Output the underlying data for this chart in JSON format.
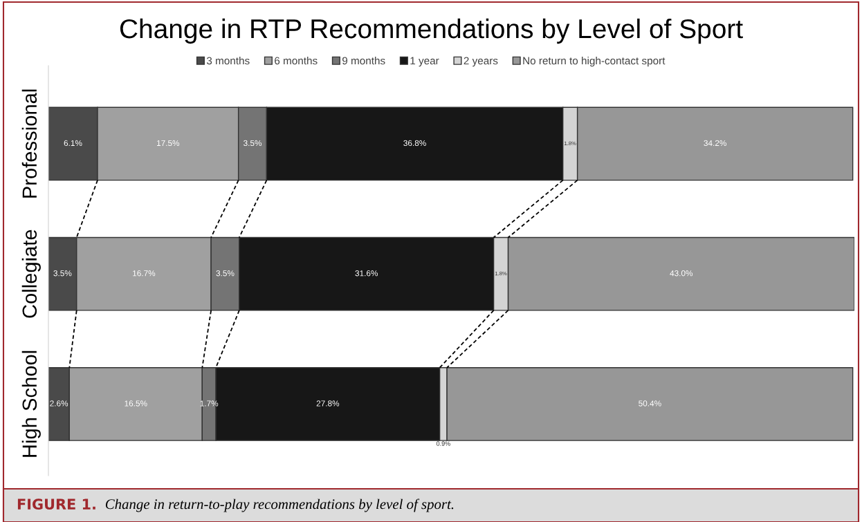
{
  "chart_data": {
    "type": "bar",
    "orientation": "horizontal",
    "stacked": true,
    "title": "Change in RTP Recommendations by Level of Sport",
    "categories": [
      "Professional",
      "Collegiate",
      "High School"
    ],
    "series": [
      {
        "name": "3 months",
        "color": "#4a4a4a",
        "values": [
          6.1,
          3.5,
          2.6
        ],
        "value_labels": [
          "6.1%",
          "3.5%",
          "2.6%"
        ]
      },
      {
        "name": "6 months",
        "color": "#a0a0a0",
        "values": [
          17.5,
          16.7,
          16.5
        ],
        "value_labels": [
          "17.5%",
          "16.7%",
          "16.5%"
        ]
      },
      {
        "name": "9 months",
        "color": "#747474",
        "values": [
          3.5,
          3.5,
          1.7
        ],
        "value_labels": [
          "3.5%",
          "3.5%",
          "1.7%"
        ]
      },
      {
        "name": "1 year",
        "color": "#171717",
        "values": [
          36.8,
          31.6,
          27.8
        ],
        "value_labels": [
          "36.8%",
          "31.6%",
          "27.8%"
        ]
      },
      {
        "name": "2 years",
        "color": "#d4d4d4",
        "values": [
          1.8,
          1.8,
          0.9
        ],
        "value_labels": [
          "1.8%",
          "1.8%",
          "0.9%"
        ]
      },
      {
        "name": "No return to high-contact sport",
        "color": "#979797",
        "values": [
          34.2,
          43.0,
          50.4
        ],
        "value_labels": [
          "34.2%",
          "43.0%",
          "50.4%"
        ]
      }
    ],
    "legend": "top",
    "grid": false,
    "tick_labels": "y",
    "annotations": [
      "FIGURE 1.",
      "Change in return-to-play recommendations by level of sport."
    ]
  }
}
